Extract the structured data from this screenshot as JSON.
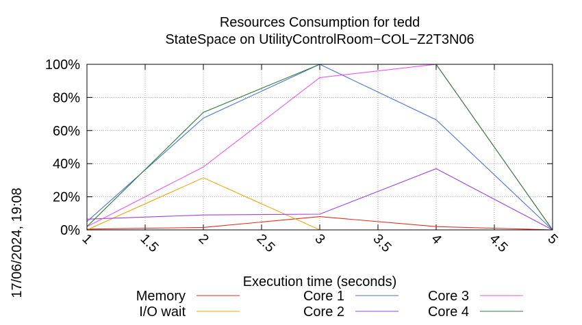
{
  "chart_data": {
    "type": "line",
    "title": "Resources Consumption for tedd",
    "subtitle": "StateSpace on UtilityControlRoom−COL−Z2T3N06",
    "xlabel": "Execution time (seconds)",
    "ylabel": "",
    "timestamp": "17/06/2024, 19:08",
    "xlim": [
      1,
      5
    ],
    "ylim": [
      0,
      100
    ],
    "x_ticks": [
      1,
      1.5,
      2,
      2.5,
      3,
      3.5,
      4,
      4.5,
      5
    ],
    "x_tick_labels": [
      "1",
      "1.5",
      "2",
      "2.5",
      "3",
      "3.5",
      "4",
      "4.5",
      "5"
    ],
    "y_ticks": [
      0,
      20,
      40,
      60,
      80,
      100
    ],
    "y_tick_labels": [
      "0%",
      "20%",
      "40%",
      "60%",
      "80%",
      "100%"
    ],
    "grid": true,
    "legend_position": "bottom",
    "series": [
      {
        "name": "Memory",
        "color": "#e8291c",
        "x": [
          1,
          2,
          3,
          4,
          5
        ],
        "values": [
          0.5,
          1.5,
          8,
          2,
          0
        ]
      },
      {
        "name": "I/O wait",
        "color": "#f5a300",
        "x": [
          1,
          2,
          3,
          4,
          5
        ],
        "values": [
          0,
          31.5,
          0,
          0,
          0
        ]
      },
      {
        "name": "Core 1",
        "color": "#4a72d6",
        "x": [
          1,
          2,
          3,
          4,
          5
        ],
        "values": [
          5,
          67.5,
          100,
          66.5,
          0
        ]
      },
      {
        "name": "Core 2",
        "color": "#9a3ef0",
        "x": [
          1,
          2,
          3,
          4,
          5
        ],
        "values": [
          6.5,
          9,
          9.5,
          37,
          0
        ]
      },
      {
        "name": "Core 3",
        "color": "#ee55ee",
        "x": [
          1,
          2,
          3,
          4,
          5
        ],
        "values": [
          2,
          38,
          92,
          100,
          0
        ]
      },
      {
        "name": "Core 4",
        "color": "#2e7d32",
        "x": [
          1,
          2,
          3,
          4,
          5
        ],
        "values": [
          2,
          71,
          100,
          100,
          0
        ]
      }
    ]
  }
}
